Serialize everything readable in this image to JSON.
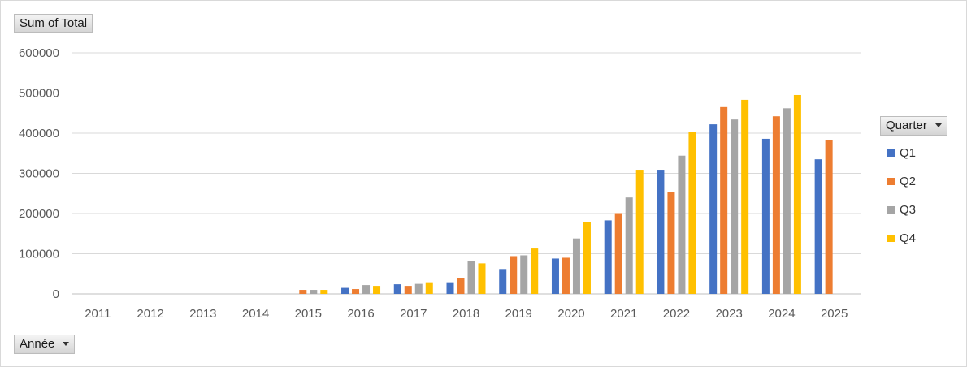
{
  "chart_data": {
    "type": "bar",
    "title": "",
    "xlabel": "",
    "ylabel": "",
    "ylim": [
      0,
      600000
    ],
    "yticks": [
      0,
      100000,
      200000,
      300000,
      400000,
      500000,
      600000
    ],
    "grid": true,
    "legend_placement": "right",
    "legend_title": "Quarter",
    "categories": [
      "2011",
      "2012",
      "2013",
      "2014",
      "2015",
      "2016",
      "2017",
      "2018",
      "2019",
      "2020",
      "2021",
      "2022",
      "2023",
      "2024",
      "2025"
    ],
    "series": [
      {
        "name": "Q1",
        "color": "#4472c4",
        "values": [
          0,
          0,
          0,
          0,
          0,
          15000,
          24000,
          29000,
          62000,
          88000,
          183000,
          309000,
          422000,
          386000,
          335000
        ]
      },
      {
        "name": "Q2",
        "color": "#ed7d31",
        "values": [
          0,
          0,
          0,
          0,
          10000,
          12000,
          20000,
          39000,
          94000,
          90000,
          201000,
          254000,
          465000,
          442000,
          383000
        ]
      },
      {
        "name": "Q3",
        "color": "#a5a5a5",
        "values": [
          0,
          0,
          0,
          0,
          10000,
          22000,
          25000,
          82000,
          96000,
          138000,
          240000,
          344000,
          434000,
          462000,
          null
        ]
      },
      {
        "name": "Q4",
        "color": "#ffc000",
        "values": [
          0,
          0,
          0,
          0,
          10000,
          20000,
          29000,
          76000,
          113000,
          179000,
          309000,
          403000,
          483000,
          495000,
          null
        ]
      }
    ]
  },
  "pivot": {
    "values_field": "Sum of Total",
    "row_field": "Année",
    "column_field": "Quarter"
  }
}
